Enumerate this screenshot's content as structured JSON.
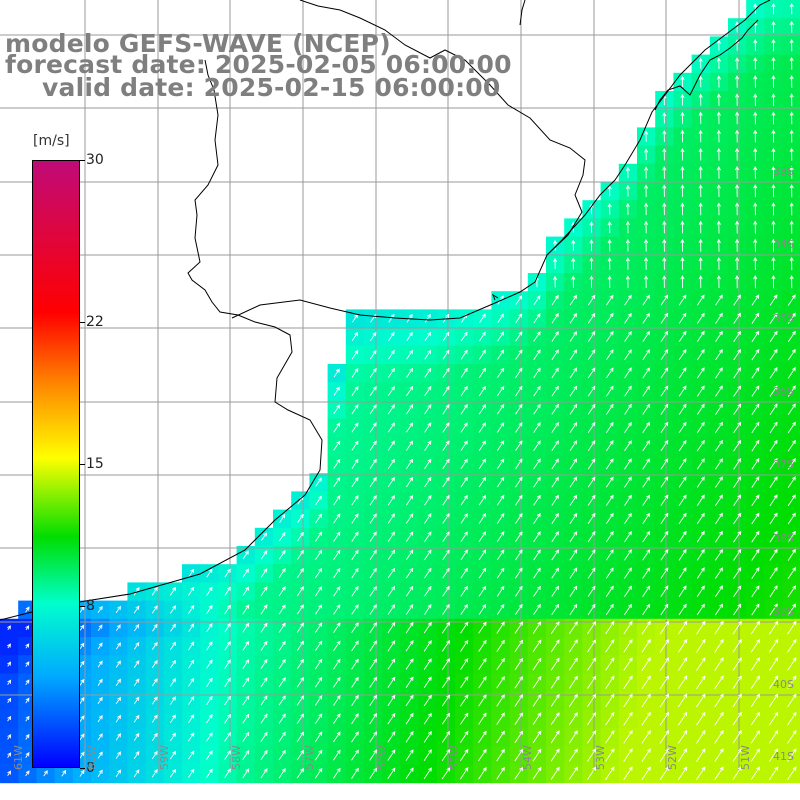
{
  "titles": {
    "model": "modelo GEFS-WAVE (NCEP)",
    "forecast": "forecast date: 2025-02-05 06:00:00",
    "valid": "valid date: 2025-02-15 06:00:00"
  },
  "colorbar": {
    "unit": "[m/s]",
    "ticks": [
      {
        "value": 30,
        "label": "30"
      },
      {
        "value": 22,
        "label": "22"
      },
      {
        "value": 15,
        "label": "15"
      },
      {
        "value": 8,
        "label": "8"
      },
      {
        "value": 0,
        "label": "0"
      }
    ],
    "min": 0,
    "max": 30,
    "colors": [
      "#0000ff",
      "#00aaff",
      "#00ffcc",
      "#00dd00",
      "#ffff00",
      "#ff8800",
      "#ff0000",
      "#c00a78"
    ]
  },
  "lat_labels": [
    "33S",
    "34S",
    "35S",
    "36S",
    "37S",
    "38S",
    "39S",
    "40S",
    "41S"
  ],
  "lon_labels": [
    "61W",
    "60W",
    "59W",
    "58W",
    "57W",
    "56W",
    "55W",
    "54W",
    "53W",
    "52W",
    "51W"
  ],
  "map_colors": {
    "land": "#ffffff",
    "grid": "#9a9a9a",
    "coast": "#000000",
    "arrow": "#ffffff"
  }
}
